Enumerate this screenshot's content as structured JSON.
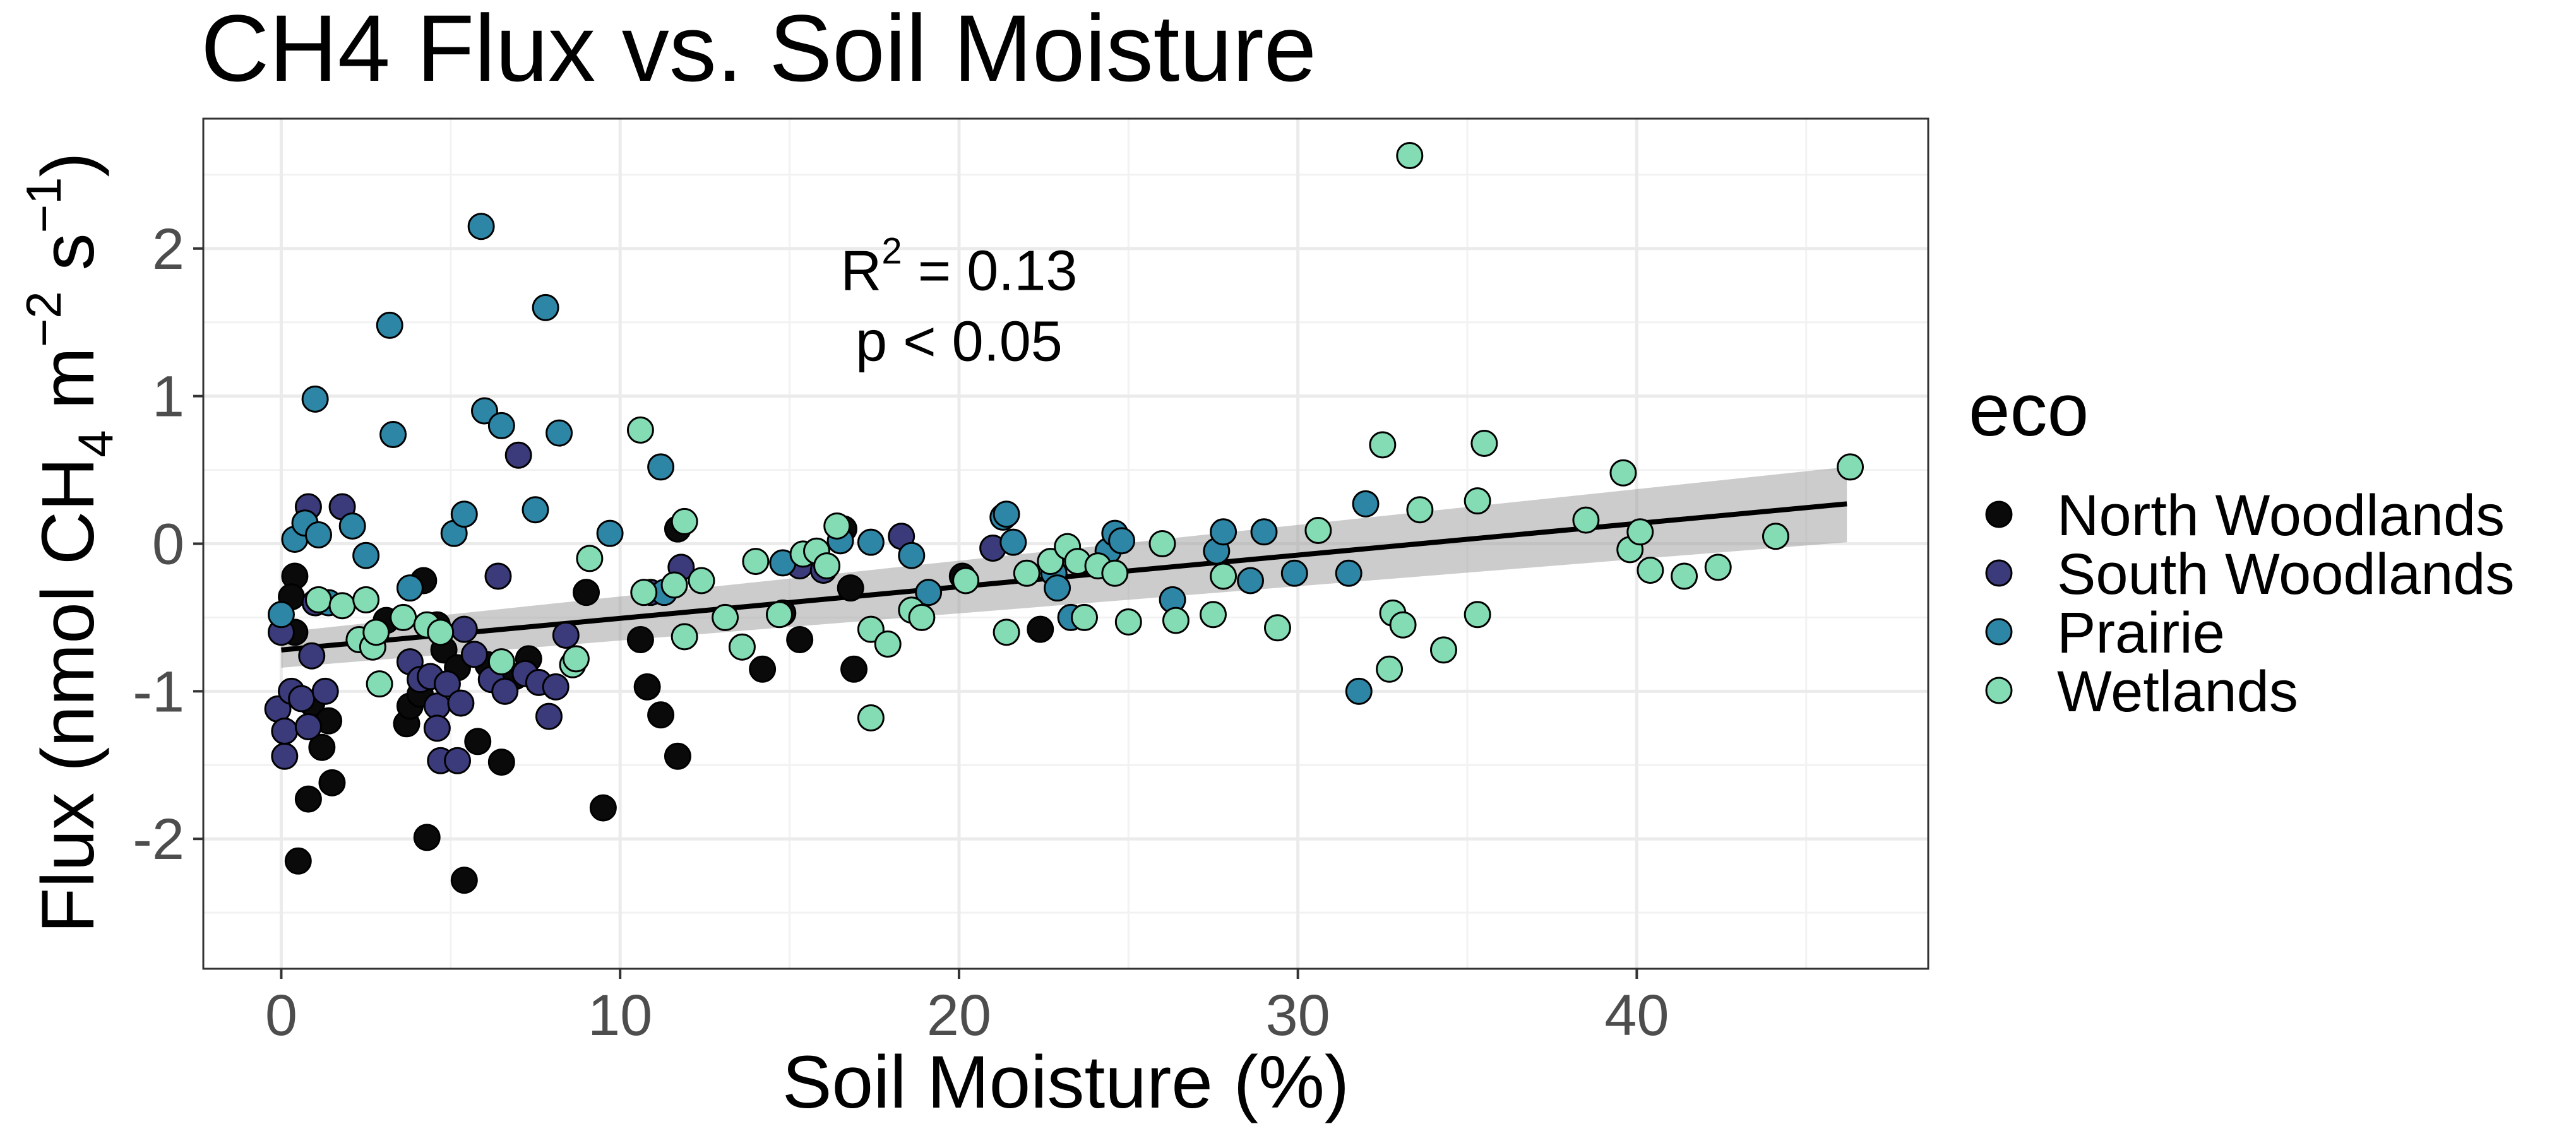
{
  "chart_data": {
    "type": "scatter",
    "title": "CH4 Flux vs. Soil Moisture",
    "xlabel": "Soil Moisture (%)",
    "ylabel_parts": {
      "prefix": "Flux (nmol CH",
      "sub": "4",
      "m": " m",
      "m_exp": "−2",
      "s": " s",
      "s_exp": "−1",
      "close": ")"
    },
    "xlim": [
      -2.3,
      48.6
    ],
    "ylim": [
      -2.88,
      2.88
    ],
    "x_ticks": [
      0,
      10,
      20,
      30,
      40
    ],
    "y_ticks": [
      -2,
      -1,
      0,
      1,
      2
    ],
    "grid": true,
    "legend": {
      "title": "eco",
      "position": "right",
      "entries": [
        "North Woodlands",
        "South Woodlands",
        "Prairie",
        "Wetlands"
      ]
    },
    "colors": {
      "North Woodlands": "#0a0a0a",
      "South Woodlands": "#3b3a7a",
      "Prairie": "#2e86a6",
      "Wetlands": "#84dcb4"
    },
    "annotation": {
      "r2_prefix": "R",
      "r2_exp": "2",
      "r2_value": " = 0.13",
      "p": "p < 0.05",
      "x": 20,
      "y": 1.72
    },
    "fit": {
      "x": [
        0,
        46.2
      ],
      "y": [
        -0.72,
        0.27
      ],
      "band_lower": [
        -0.84,
        0.01
      ],
      "band_upper": [
        -0.6,
        0.52
      ]
    },
    "series": [
      {
        "name": "North Woodlands",
        "points": [
          [
            0.4,
            -0.22
          ],
          [
            0.3,
            -0.36
          ],
          [
            0.4,
            -0.6
          ],
          [
            0.5,
            -2.15
          ],
          [
            0.8,
            -1.73
          ],
          [
            0.9,
            -1.08
          ],
          [
            1.2,
            -1.38
          ],
          [
            1.4,
            -1.2
          ],
          [
            1.5,
            -1.62
          ],
          [
            3.1,
            -0.52
          ],
          [
            3.7,
            -1.22
          ],
          [
            3.8,
            -1.1
          ],
          [
            4.1,
            -1.02
          ],
          [
            4.2,
            -0.25
          ],
          [
            4.3,
            -1.99
          ],
          [
            4.6,
            -0.55
          ],
          [
            4.8,
            -0.72
          ],
          [
            5.2,
            -0.84
          ],
          [
            5.4,
            -2.28
          ],
          [
            5.8,
            -1.34
          ],
          [
            6.1,
            -0.82
          ],
          [
            6.5,
            -1.48
          ],
          [
            6.9,
            -0.9
          ],
          [
            7.3,
            -0.78
          ],
          [
            9.0,
            -0.33
          ],
          [
            9.5,
            -1.79
          ],
          [
            10.6,
            -0.65
          ],
          [
            10.8,
            -0.97
          ],
          [
            11.2,
            -1.16
          ],
          [
            11.7,
            0.1
          ],
          [
            11.7,
            -1.44
          ],
          [
            14.2,
            -0.85
          ],
          [
            14.8,
            -0.47
          ],
          [
            15.3,
            -0.65
          ],
          [
            16.6,
            0.1
          ],
          [
            16.8,
            -0.3
          ],
          [
            16.9,
            -0.85
          ],
          [
            20.1,
            -0.22
          ],
          [
            22.4,
            -0.58
          ]
        ]
      },
      {
        "name": "South Woodlands",
        "points": [
          [
            -0.1,
            -1.12
          ],
          [
            0.0,
            -0.6
          ],
          [
            0.1,
            -1.44
          ],
          [
            0.1,
            -1.27
          ],
          [
            0.3,
            -1.0
          ],
          [
            0.6,
            -1.05
          ],
          [
            0.8,
            0.25
          ],
          [
            0.8,
            -1.24
          ],
          [
            0.9,
            -0.76
          ],
          [
            1.0,
            -0.4
          ],
          [
            1.3,
            -1.0
          ],
          [
            1.8,
            0.25
          ],
          [
            3.8,
            -0.8
          ],
          [
            4.1,
            -0.92
          ],
          [
            4.4,
            -0.9
          ],
          [
            4.6,
            -1.1
          ],
          [
            4.6,
            -1.25
          ],
          [
            4.7,
            -1.47
          ],
          [
            4.9,
            -0.95
          ],
          [
            5.2,
            -1.47
          ],
          [
            5.3,
            -1.08
          ],
          [
            5.4,
            -0.58
          ],
          [
            5.7,
            -0.75
          ],
          [
            6.2,
            -0.92
          ],
          [
            6.4,
            -0.22
          ],
          [
            6.6,
            -1.0
          ],
          [
            7.0,
            0.6
          ],
          [
            7.2,
            -0.88
          ],
          [
            7.6,
            -0.94
          ],
          [
            7.9,
            -1.17
          ],
          [
            8.1,
            -0.97
          ],
          [
            8.4,
            -0.62
          ],
          [
            10.9,
            -0.33
          ],
          [
            11.8,
            -0.16
          ],
          [
            15.3,
            -0.15
          ],
          [
            16.0,
            -0.18
          ],
          [
            18.3,
            0.05
          ],
          [
            21.0,
            -0.03
          ]
        ]
      },
      {
        "name": "Prairie",
        "points": [
          [
            0.0,
            -0.48
          ],
          [
            0.4,
            0.03
          ],
          [
            0.7,
            0.14
          ],
          [
            1.0,
            0.98
          ],
          [
            1.1,
            0.06
          ],
          [
            1.4,
            -0.4
          ],
          [
            2.1,
            0.12
          ],
          [
            2.5,
            -0.08
          ],
          [
            3.2,
            1.48
          ],
          [
            3.3,
            0.74
          ],
          [
            3.8,
            -0.3
          ],
          [
            5.1,
            0.07
          ],
          [
            5.4,
            0.2
          ],
          [
            5.9,
            2.15
          ],
          [
            6.0,
            0.9
          ],
          [
            6.5,
            0.8
          ],
          [
            7.5,
            0.23
          ],
          [
            7.8,
            1.6
          ],
          [
            8.2,
            0.75
          ],
          [
            9.7,
            0.07
          ],
          [
            11.2,
            0.52
          ],
          [
            11.3,
            -0.33
          ],
          [
            14.8,
            -0.13
          ],
          [
            16.5,
            0.02
          ],
          [
            17.4,
            0.01
          ],
          [
            18.6,
            -0.08
          ],
          [
            19.1,
            -0.33
          ],
          [
            21.3,
            0.18
          ],
          [
            21.4,
            0.2
          ],
          [
            21.6,
            0.01
          ],
          [
            22.8,
            -0.2
          ],
          [
            22.9,
            -0.3
          ],
          [
            23.3,
            -0.5
          ],
          [
            24.4,
            -0.05
          ],
          [
            24.6,
            0.07
          ],
          [
            24.8,
            0.02
          ],
          [
            26.3,
            -0.38
          ],
          [
            27.6,
            -0.05
          ],
          [
            27.8,
            0.08
          ],
          [
            28.6,
            -0.25
          ],
          [
            29.0,
            0.08
          ],
          [
            29.9,
            -0.2
          ],
          [
            31.5,
            -0.2
          ],
          [
            31.8,
            -1.0
          ],
          [
            32.0,
            0.27
          ]
        ]
      },
      {
        "name": "Wetlands",
        "points": [
          [
            1.1,
            -0.38
          ],
          [
            1.8,
            -0.42
          ],
          [
            2.3,
            -0.65
          ],
          [
            2.5,
            -0.38
          ],
          [
            2.7,
            -0.7
          ],
          [
            2.8,
            -0.6
          ],
          [
            2.9,
            -0.95
          ],
          [
            3.6,
            -0.5
          ],
          [
            4.3,
            -0.55
          ],
          [
            4.7,
            -0.6
          ],
          [
            6.5,
            -0.8
          ],
          [
            8.6,
            -0.82
          ],
          [
            8.7,
            -0.78
          ],
          [
            9.1,
            -0.1
          ],
          [
            10.6,
            0.77
          ],
          [
            10.7,
            -0.33
          ],
          [
            11.6,
            -0.28
          ],
          [
            11.9,
            0.15
          ],
          [
            11.9,
            -0.63
          ],
          [
            12.4,
            -0.25
          ],
          [
            13.1,
            -0.5
          ],
          [
            13.6,
            -0.7
          ],
          [
            14.0,
            -0.12
          ],
          [
            14.7,
            -0.48
          ],
          [
            15.4,
            -0.07
          ],
          [
            15.8,
            -0.05
          ],
          [
            16.1,
            -0.15
          ],
          [
            16.4,
            0.12
          ],
          [
            17.4,
            -0.58
          ],
          [
            17.4,
            -1.18
          ],
          [
            17.9,
            -0.68
          ],
          [
            18.6,
            -0.45
          ],
          [
            18.9,
            -0.5
          ],
          [
            20.2,
            -0.25
          ],
          [
            21.4,
            -0.6
          ],
          [
            22.0,
            -0.2
          ],
          [
            22.7,
            -0.12
          ],
          [
            23.2,
            -0.02
          ],
          [
            23.5,
            -0.12
          ],
          [
            23.7,
            -0.5
          ],
          [
            24.1,
            -0.15
          ],
          [
            24.6,
            -0.2
          ],
          [
            25.0,
            -0.53
          ],
          [
            26.0,
            0.0
          ],
          [
            26.4,
            -0.52
          ],
          [
            27.5,
            -0.48
          ],
          [
            27.8,
            -0.22
          ],
          [
            29.4,
            -0.57
          ],
          [
            30.6,
            0.09
          ],
          [
            32.5,
            0.67
          ],
          [
            32.7,
            -0.85
          ],
          [
            32.8,
            -0.47
          ],
          [
            33.1,
            -0.55
          ],
          [
            33.3,
            2.63
          ],
          [
            33.6,
            0.23
          ],
          [
            34.3,
            -0.72
          ],
          [
            35.3,
            0.29
          ],
          [
            35.3,
            -0.48
          ],
          [
            35.5,
            0.68
          ],
          [
            38.5,
            0.16
          ],
          [
            39.6,
            0.48
          ],
          [
            39.8,
            -0.04
          ],
          [
            40.1,
            0.08
          ],
          [
            40.4,
            -0.18
          ],
          [
            41.4,
            -0.22
          ],
          [
            42.4,
            -0.16
          ],
          [
            44.1,
            0.05
          ],
          [
            46.3,
            0.52
          ]
        ]
      }
    ]
  }
}
